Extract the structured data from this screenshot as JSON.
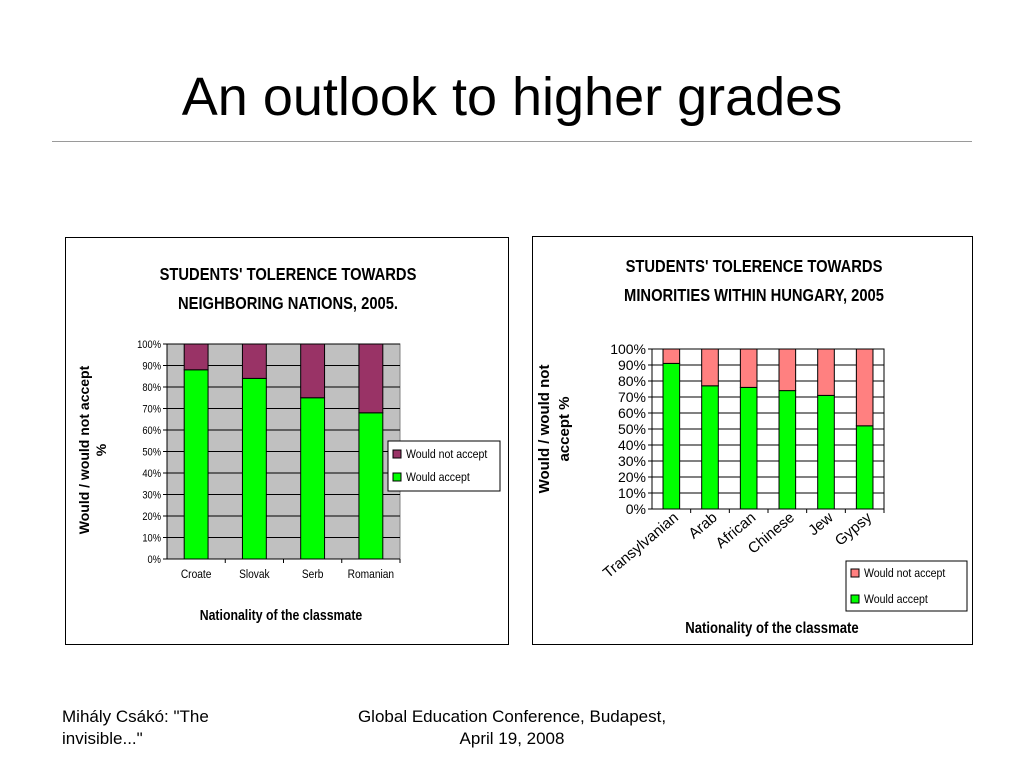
{
  "slide": {
    "title": "An outlook to higher grades",
    "footer_left": "Mihály Csákó: \"The invisible...\"",
    "footer_center": "Global Education Conference, Budapest, April 19, 2008"
  },
  "chart_data": [
    {
      "type": "bar",
      "stacked": true,
      "percent_stacked": true,
      "title": [
        "STUDENTS' TOLERENCE TOWARDS",
        "NEIGHBORING NATIONS, 2005."
      ],
      "xlabel": "Nationality of the classmate",
      "ylabel": [
        "Would / would not accept",
        "%"
      ],
      "categories": [
        "Croate",
        "Slovak",
        "Serb",
        "Romanian"
      ],
      "series": [
        {
          "name": "Would accept",
          "values": [
            88,
            84,
            75,
            68
          ],
          "color": "#00ff00"
        },
        {
          "name": "Would not accept",
          "values": [
            12,
            16,
            25,
            32
          ],
          "color": "#993366"
        }
      ],
      "yticks": [
        "0%",
        "10%",
        "20%",
        "30%",
        "40%",
        "50%",
        "60%",
        "70%",
        "80%",
        "90%",
        "100%"
      ],
      "ylim": [
        0,
        100
      ],
      "plot_background": "#c0c0c0",
      "grid": true,
      "legend_position": "right"
    },
    {
      "type": "bar",
      "stacked": true,
      "percent_stacked": true,
      "title": [
        "STUDENTS' TOLERENCE TOWARDS",
        "MINORITIES WITHIN HUNGARY, 2005"
      ],
      "xlabel": "Nationality of the classmate",
      "ylabel": [
        "Would / would not",
        "accept %"
      ],
      "categories": [
        "Transylvanian",
        "Arab",
        "African",
        "Chinese",
        "Jew",
        "Gypsy"
      ],
      "series": [
        {
          "name": "Would accept",
          "values": [
            91,
            77,
            76,
            74,
            71,
            52
          ],
          "color": "#00ff00"
        },
        {
          "name": "Would not accept",
          "values": [
            9,
            23,
            24,
            26,
            29,
            48
          ],
          "color": "#ff8080"
        }
      ],
      "yticks": [
        "0%",
        "10%",
        "20%",
        "30%",
        "40%",
        "50%",
        "60%",
        "70%",
        "80%",
        "90%",
        "100%"
      ],
      "ylim": [
        0,
        100
      ],
      "plot_background": "#ffffff",
      "grid": true,
      "legend_position": "bottom-right"
    }
  ]
}
